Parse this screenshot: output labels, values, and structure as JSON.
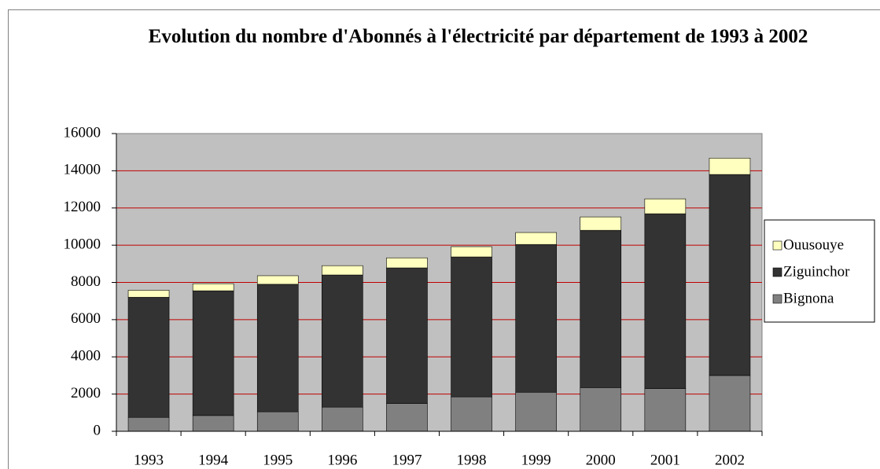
{
  "chart_data": {
    "type": "stacked_bar",
    "title": "Evolution du nombre d'Abonnés à l'électricité par département de 1993 à 2002",
    "categories": [
      "1993",
      "1994",
      "1995",
      "1996",
      "1997",
      "1998",
      "1999",
      "2000",
      "2001",
      "2002"
    ],
    "series": [
      {
        "name": "Bignona",
        "color": "#808080",
        "values": [
          750,
          850,
          1050,
          1300,
          1500,
          1850,
          2100,
          2350,
          2300,
          3000
        ]
      },
      {
        "name": "Ziguinchor",
        "color": "#333333",
        "values": [
          6450,
          6700,
          6850,
          7100,
          7280,
          7520,
          7940,
          8450,
          9390,
          10800
        ]
      },
      {
        "name": "Ouusouye",
        "color": "#ffffc0",
        "values": [
          380,
          380,
          460,
          500,
          540,
          550,
          640,
          720,
          800,
          880
        ]
      }
    ],
    "ylim": [
      0,
      16000
    ],
    "yticks": [
      0,
      2000,
      4000,
      6000,
      8000,
      10000,
      12000,
      14000,
      16000
    ],
    "grid": true,
    "legend": "right"
  }
}
